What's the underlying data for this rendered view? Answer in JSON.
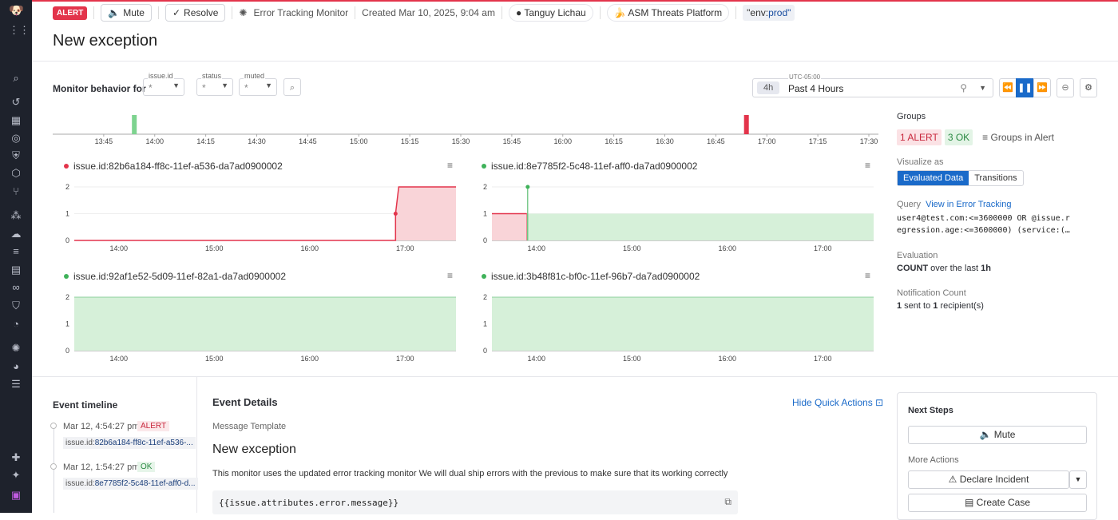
{
  "header": {
    "status": "ALERT",
    "mute": "Mute",
    "resolve": "Resolve",
    "monitor_type": "Error Tracking Monitor",
    "created": "Created Mar 10, 2025, 9:04 am",
    "owner": "Tanguy Lichau",
    "team": "ASM Threats Platform",
    "tag_key": "\"env:",
    "tag_value": "prod\""
  },
  "title": "New exception",
  "filters": {
    "label": "Monitor behavior for",
    "fields": [
      {
        "label": "issue.id",
        "value": "*"
      },
      {
        "label": "status",
        "value": "*"
      },
      {
        "label": "muted",
        "value": "*"
      }
    ]
  },
  "timepicker": {
    "timezone": "UTC-05:00",
    "short": "4h",
    "label": "Past 4 Hours"
  },
  "overview": {
    "ticks": [
      "13:45",
      "14:00",
      "14:15",
      "14:30",
      "14:45",
      "15:00",
      "15:15",
      "15:30",
      "15:45",
      "16:00",
      "16:15",
      "16:30",
      "16:45",
      "17:00",
      "17:15",
      "17:30"
    ],
    "events": [
      {
        "time": "13:54",
        "status": "ok"
      },
      {
        "time": "16:54",
        "status": "alert"
      }
    ]
  },
  "colors": {
    "alert": "#e3344b",
    "ok": "#3fb25a",
    "accent": "#1a6ac9",
    "alert_fill": "#f9d4d8",
    "ok_fill": "#d6f0d9"
  },
  "chart_data": [
    {
      "type": "area",
      "title": "issue.id:82b6a184-ff8c-11ef-a536-da7ad0900002",
      "status": "alert",
      "x_ticks": [
        "14:00",
        "15:00",
        "16:00",
        "17:00"
      ],
      "y_ticks": [
        "0",
        "1",
        "2"
      ],
      "ylim": [
        0,
        2
      ],
      "xlim": [
        "13:32",
        "17:32"
      ],
      "points": [
        [
          "13:32",
          0
        ],
        [
          "16:54",
          0
        ],
        [
          "16:54",
          1
        ],
        [
          "16:56",
          2
        ],
        [
          "17:32",
          2
        ]
      ]
    },
    {
      "type": "area",
      "title": "issue.id:8e7785f2-5c48-11ef-aff0-da7ad0900002",
      "status": "ok",
      "x_ticks": [
        "14:00",
        "15:00",
        "16:00",
        "17:00"
      ],
      "y_ticks": [
        "0",
        "1",
        "2"
      ],
      "ylim": [
        0,
        2
      ],
      "xlim": [
        "13:32",
        "17:32"
      ],
      "points": [
        [
          "13:32",
          1
        ],
        [
          "13:54",
          1
        ],
        [
          "13:54",
          2
        ],
        [
          "13:54",
          1
        ],
        [
          "17:32",
          1
        ]
      ]
    },
    {
      "type": "area",
      "title": "issue.id:92af1e52-5d09-11ef-82a1-da7ad0900002",
      "status": "ok",
      "x_ticks": [
        "14:00",
        "15:00",
        "16:00",
        "17:00"
      ],
      "y_ticks": [
        "0",
        "1",
        "2"
      ],
      "ylim": [
        0,
        2
      ],
      "xlim": [
        "13:32",
        "17:32"
      ],
      "points": [
        [
          "13:32",
          2
        ],
        [
          "17:32",
          2
        ]
      ]
    },
    {
      "type": "area",
      "title": "issue.id:3b48f81c-bf0c-11ef-96b7-da7ad0900002",
      "status": "ok",
      "x_ticks": [
        "14:00",
        "15:00",
        "16:00",
        "17:00"
      ],
      "y_ticks": [
        "0",
        "1",
        "2"
      ],
      "ylim": [
        0,
        2
      ],
      "xlim": [
        "13:32",
        "17:32"
      ],
      "points": [
        [
          "13:32",
          2
        ],
        [
          "17:32",
          2
        ]
      ]
    }
  ],
  "right": {
    "groups_label": "Groups",
    "alert_count": "1 ALERT",
    "ok_count": "3 OK",
    "groups_filter": "Groups in Alert",
    "visualize_label": "Visualize as",
    "viz_options": [
      "Evaluated Data",
      "Transitions"
    ],
    "query_label": "Query",
    "query_link": "View in Error Tracking",
    "query_text_1": "user4@test.com:<=3600000 OR @issue.r",
    "query_text_2": "egression.age:<=3600000) (service:(…",
    "evaluation_label": "Evaluation",
    "eval_agg": "COUNT",
    "eval_rest": " over the last ",
    "eval_window": "1h",
    "notif_label": "Notification Count",
    "notif_n": "1",
    "notif_mid": " sent to ",
    "notif_m": "1",
    "notif_end": " recipient(s)"
  },
  "timeline": {
    "title": "Event timeline",
    "events": [
      {
        "time": "Mar 12, 4:54:27 pm",
        "status": "ALERT",
        "key": "issue.id:",
        "id": "82b6a184-ff8c-11ef-a536-..."
      },
      {
        "time": "Mar 12, 1:54:27 pm",
        "status": "OK",
        "key": "issue.id:",
        "id": "8e7785f2-5c48-11ef-aff0-d..."
      }
    ]
  },
  "details": {
    "title": "Event Details",
    "hide": "Hide Quick Actions",
    "template_label": "Message Template",
    "msg_title": "New exception",
    "body": "This monitor uses the updated error tracking monitor We will dual ship errors with the previous to make sure that its working correctly",
    "code": "{{issue.attributes.error.message}}"
  },
  "next_steps": {
    "title": "Next Steps",
    "mute": "Mute",
    "more": "More Actions",
    "declare": "Declare Incident",
    "case": "Create Case"
  }
}
